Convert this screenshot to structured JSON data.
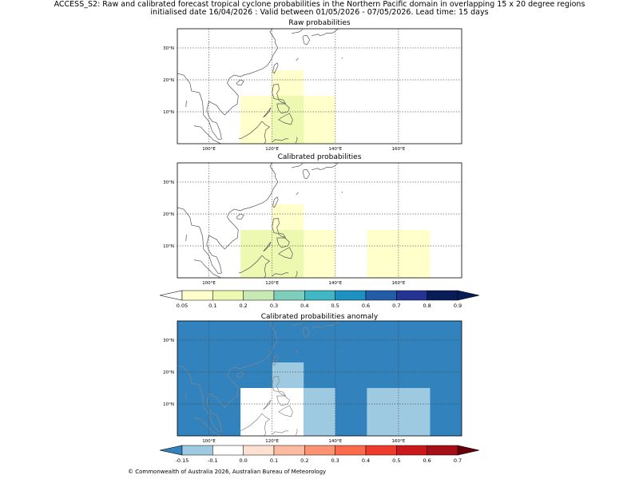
{
  "title_line1": "ACCESS_S2: Raw and calibrated forecast tropical cyclone probabilities in the Northern Pacific domain in overlapping 15 x 20 degree regions",
  "title_line2": "initialised date 16/04/2026 :  Valid between 01/05/2026 - 07/05/2026. Lead time: 15 days",
  "footer": "© Commonwealth of Australia 2026, Australian Bureau of Meteorology",
  "map_extent": {
    "lon": [
      90,
      180
    ],
    "lat": [
      0,
      36
    ]
  },
  "lon_ticks": [
    {
      "value": 100,
      "label": "100°E"
    },
    {
      "value": 120,
      "label": "120°E"
    },
    {
      "value": 140,
      "label": "140°E"
    },
    {
      "value": 160,
      "label": "160°E"
    }
  ],
  "lat_ticks": [
    {
      "value": 10,
      "label": "10°N"
    },
    {
      "value": 20,
      "label": "20°N"
    },
    {
      "value": 30,
      "label": "30°N"
    }
  ],
  "panels": [
    {
      "title": "Raw probabilities",
      "background": "#ffffff",
      "regions": [
        {
          "lon": [
            110,
            130
          ],
          "lat": [
            0,
            15
          ],
          "color": "#ffffcc"
        },
        {
          "lon": [
            120,
            140
          ],
          "lat": [
            0,
            15
          ],
          "color": "#ffffcc"
        },
        {
          "lon": [
            120,
            130
          ],
          "lat": [
            0,
            23
          ],
          "color": "#ffffcc"
        },
        {
          "lon": [
            120,
            130
          ],
          "lat": [
            0,
            15
          ],
          "color": "#edf8b1"
        }
      ]
    },
    {
      "title": "Calibrated probabilities",
      "background": "#ffffff",
      "regions": [
        {
          "lon": [
            110,
            130
          ],
          "lat": [
            0,
            15
          ],
          "color": "#edf8b1"
        },
        {
          "lon": [
            130,
            140
          ],
          "lat": [
            0,
            15
          ],
          "color": "#ffffcc"
        },
        {
          "lon": [
            120,
            130
          ],
          "lat": [
            15,
            23
          ],
          "color": "#ffffcc"
        },
        {
          "lon": [
            150,
            170
          ],
          "lat": [
            0,
            15
          ],
          "color": "#ffffcc"
        }
      ]
    },
    {
      "title": "Calibrated probabilities anomaly",
      "background": "#3182bd",
      "regions": [
        {
          "lon": [
            120,
            130
          ],
          "lat": [
            15,
            23
          ],
          "color": "#9ecae1"
        },
        {
          "lon": [
            110,
            130
          ],
          "lat": [
            0,
            15
          ],
          "color": "#ffffff"
        },
        {
          "lon": [
            130,
            140
          ],
          "lat": [
            0,
            15
          ],
          "color": "#9ecae1"
        },
        {
          "lon": [
            150,
            170
          ],
          "lat": [
            0,
            15
          ],
          "color": "#9ecae1"
        }
      ]
    }
  ],
  "colorbars": [
    {
      "under": "#ffffff",
      "over": "#081d58",
      "colors": [
        "#ffffcc",
        "#edf8b1",
        "#c7e9b4",
        "#7fcdbb",
        "#41b6c4",
        "#1d91c0",
        "#225ea8",
        "#253494",
        "#081d58"
      ],
      "labels": [
        "0.05",
        "0.1",
        "0.2",
        "0.3",
        "0.4",
        "0.5",
        "0.6",
        "0.7",
        "0.8",
        "0.9"
      ]
    },
    {
      "under": "#3182bd",
      "over": "#67000d",
      "colors": [
        "#9ecae1",
        "#ffffff",
        "#fee0d2",
        "#fcbba1",
        "#fc9272",
        "#fb6a4a",
        "#ef3b2c",
        "#cb181d",
        "#a50f15"
      ],
      "labels": [
        "-0.15",
        "-0.1",
        "0.0",
        "0.1",
        "0.2",
        "0.3",
        "0.4",
        "0.5",
        "0.6",
        "0.7"
      ]
    }
  ]
}
